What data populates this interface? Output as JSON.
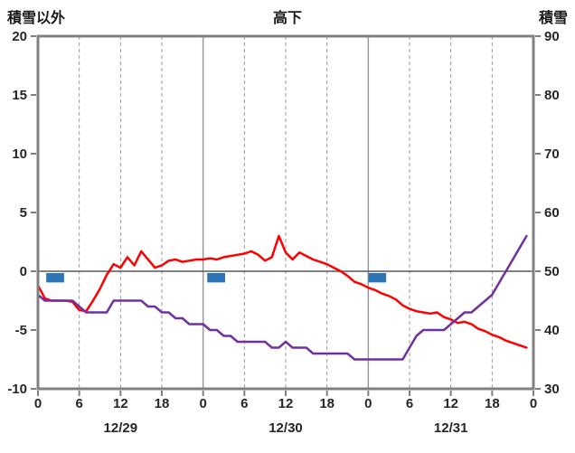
{
  "labels": {
    "top_left": "積雪以外",
    "title": "高下",
    "top_right": "積雪"
  },
  "style": {
    "border_color": "#808080",
    "grid_color": "#999999",
    "zero_line_color": "#595959",
    "axis_text_color": "#262626",
    "background": "#ffffff"
  },
  "chart_data": {
    "type": "line",
    "title": "高下",
    "left_axis": {
      "label": "積雪以外",
      "min": -10,
      "max": 20,
      "ticks": [
        20,
        15,
        10,
        5,
        0,
        -5,
        -10
      ]
    },
    "right_axis": {
      "label": "積雪",
      "min": 30,
      "max": 90,
      "ticks": [
        90,
        80,
        70,
        60,
        50,
        40,
        30
      ]
    },
    "x_axis": {
      "total_hours": 72,
      "tick_step": 6,
      "hour_tick_labels": [
        "0",
        "6",
        "12",
        "18",
        "0",
        "6",
        "12",
        "18",
        "0",
        "6",
        "12",
        "18",
        "0"
      ],
      "day_labels": [
        "12/29",
        "12/30",
        "12/31"
      ]
    },
    "series": [
      {
        "name": "temperature",
        "axis": "left",
        "color": "#FF0000",
        "values": [
          -1.2,
          -2.3,
          -2.5,
          -2.5,
          -2.5,
          -2.6,
          -3.3,
          -3.4,
          -2.5,
          -1.5,
          -0.3,
          0.6,
          0.3,
          1.2,
          0.5,
          1.7,
          1.0,
          0.3,
          0.5,
          0.9,
          1.0,
          0.8,
          0.9,
          1.0,
          1.0,
          1.1,
          1.0,
          1.2,
          1.3,
          1.4,
          1.5,
          1.7,
          1.4,
          0.9,
          1.2,
          3.0,
          1.6,
          1.0,
          1.6,
          1.3,
          1.0,
          0.8,
          0.6,
          0.3,
          0.0,
          -0.4,
          -0.9,
          -1.1,
          -1.4,
          -1.6,
          -1.9,
          -2.1,
          -2.4,
          -2.9,
          -3.2,
          -3.4,
          -3.5,
          -3.6,
          -3.5,
          -3.9,
          -4.1,
          -4.4,
          -4.3,
          -4.5,
          -4.9,
          -5.1,
          -5.4,
          -5.6,
          -5.9,
          -6.1,
          -6.3,
          -6.5
        ]
      },
      {
        "name": "snow-depth",
        "axis": "right",
        "color": "#7030A0",
        "values": [
          46,
          45,
          45,
          45,
          45,
          45,
          44,
          43,
          43,
          43,
          43,
          45,
          45,
          45,
          45,
          45,
          44,
          44,
          43,
          43,
          42,
          42,
          41,
          41,
          41,
          40,
          40,
          39,
          39,
          38,
          38,
          38,
          38,
          38,
          37,
          37,
          38,
          37,
          37,
          37,
          36,
          36,
          36,
          36,
          36,
          36,
          35,
          35,
          35,
          35,
          35,
          35,
          35,
          35,
          37,
          39,
          40,
          40,
          40,
          40,
          41,
          42,
          43,
          43,
          44,
          45,
          46,
          48,
          50,
          52,
          54,
          56
        ]
      }
    ],
    "bars": {
      "name": "blue-marker",
      "axis": "left",
      "color": "#2E75B6",
      "segments": [
        {
          "from": 1.2,
          "to": 3.8,
          "top": -0.15,
          "bottom": -0.95
        },
        {
          "from": 24.6,
          "to": 27.2,
          "top": -0.15,
          "bottom": -0.95
        },
        {
          "from": 48.0,
          "to": 50.6,
          "top": -0.15,
          "bottom": -0.95
        }
      ]
    }
  }
}
